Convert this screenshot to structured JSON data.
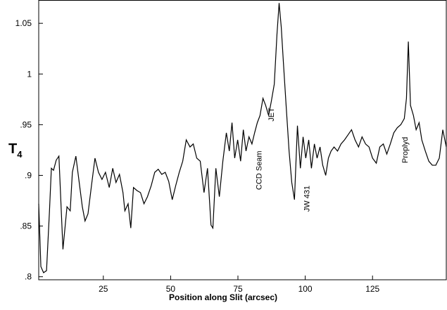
{
  "chart_data": {
    "type": "line",
    "x_label": "Position along Slit (arcsec)",
    "y_label": {
      "main": "T",
      "sub": "4"
    },
    "color": "#000000",
    "xlim": [
      1,
      152.4
    ],
    "xticks": [
      25,
      50,
      75,
      100,
      125
    ],
    "ylim": [
      0.797,
      1.073
    ],
    "yticks": [
      {
        "value": 0.8,
        "label": ".8"
      },
      {
        "value": 0.85,
        "label": ".85"
      },
      {
        "value": 0.9,
        "label": ".9"
      },
      {
        "value": 0.95,
        "label": ".95"
      },
      1,
      1.05
    ],
    "x": [
      1,
      1.8,
      2.8,
      3.9,
      5,
      5.7,
      6.5,
      7.5,
      8.5,
      10,
      11.5,
      12.7,
      13.5,
      14.8,
      15.9,
      17.2,
      18.2,
      19.3,
      20.6,
      21.9,
      23.2,
      24.5,
      25.8,
      27.2,
      28.5,
      29.7,
      31,
      32.3,
      33,
      34.2,
      35.2,
      36.2,
      37.5,
      38.8,
      40.1,
      41.4,
      42.8,
      44.1,
      45.4,
      46.7,
      48,
      49.3,
      50.6,
      51.9,
      53.2,
      54.5,
      55.8,
      57.2,
      58.4,
      59.7,
      61,
      62.4,
      63.7,
      65,
      65.7,
      66.8,
      68.1,
      69.4,
      70.7,
      71.8,
      72.8,
      73.8,
      74.9,
      76,
      77,
      78,
      79.1,
      80.2,
      81.2,
      82.2,
      83.2,
      84.3,
      85.3,
      86.4,
      87.4,
      88.5,
      89.5,
      90.3,
      91.1,
      91.9,
      92.9,
      94,
      95,
      96,
      97.1,
      98.2,
      99.2,
      100.2,
      101.3,
      102.3,
      103.4,
      104.4,
      105.5,
      106.5,
      107.6,
      108.6,
      109.6,
      110.7,
      112,
      113.3,
      114.6,
      115.9,
      117.2,
      118.5,
      119.8,
      121.1,
      122.4,
      123.7,
      125,
      126.4,
      127.7,
      129,
      130.3,
      131.6,
      132.9,
      134.2,
      135.5,
      136.8,
      137.6,
      138.3,
      139.1,
      140.2,
      141.2,
      142.3,
      143.3,
      144.6,
      145.9,
      147.2,
      148.5,
      149.8,
      151.1,
      152.4
    ],
    "values": [
      0.872,
      0.81,
      0.804,
      0.806,
      0.865,
      0.907,
      0.905,
      0.915,
      0.919,
      0.827,
      0.869,
      0.865,
      0.903,
      0.919,
      0.896,
      0.869,
      0.855,
      0.862,
      0.89,
      0.917,
      0.903,
      0.896,
      0.903,
      0.888,
      0.907,
      0.893,
      0.901,
      0.883,
      0.865,
      0.872,
      0.848,
      0.888,
      0.885,
      0.883,
      0.872,
      0.879,
      0.89,
      0.903,
      0.906,
      0.901,
      0.903,
      0.894,
      0.876,
      0.89,
      0.903,
      0.914,
      0.935,
      0.928,
      0.931,
      0.917,
      0.914,
      0.883,
      0.907,
      0.851,
      0.848,
      0.907,
      0.879,
      0.914,
      0.942,
      0.924,
      0.952,
      0.917,
      0.935,
      0.914,
      0.945,
      0.924,
      0.938,
      0.931,
      0.942,
      0.952,
      0.959,
      0.976,
      0.969,
      0.959,
      0.973,
      0.99,
      1.039,
      1.07,
      1.046,
      1.011,
      0.969,
      0.924,
      0.893,
      0.876,
      0.949,
      0.907,
      0.938,
      0.917,
      0.935,
      0.907,
      0.931,
      0.917,
      0.928,
      0.91,
      0.9,
      0.917,
      0.924,
      0.928,
      0.924,
      0.931,
      0.935,
      0.94,
      0.945,
      0.935,
      0.928,
      0.938,
      0.931,
      0.928,
      0.917,
      0.912,
      0.928,
      0.931,
      0.921,
      0.931,
      0.942,
      0.947,
      0.95,
      0.956,
      0.976,
      1.032,
      0.969,
      0.959,
      0.945,
      0.952,
      0.935,
      0.924,
      0.914,
      0.91,
      0.91,
      0.917,
      0.945,
      0.928
    ],
    "annotations": [
      {
        "text": "CCD Seam",
        "x": 83.8,
        "y": 0.905
      },
      {
        "text": "JET",
        "x": 88.3,
        "y": 0.96
      },
      {
        "text": "JW 431",
        "x": 101.5,
        "y": 0.877
      },
      {
        "text": "Proplyd",
        "x": 138,
        "y": 0.925
      }
    ]
  }
}
